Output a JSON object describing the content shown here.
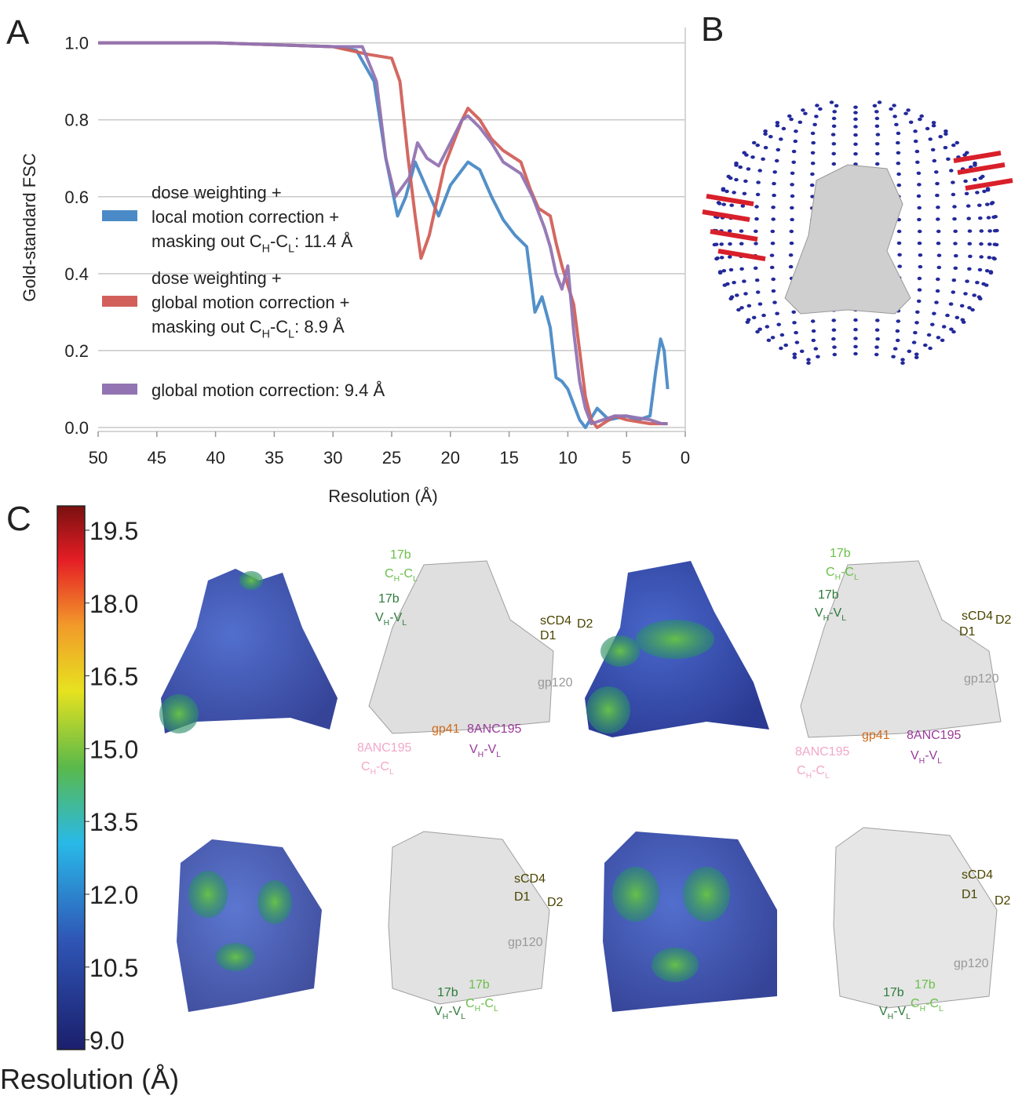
{
  "panels": {
    "a": "A",
    "b": "B",
    "c": "C"
  },
  "chart_data": {
    "type": "line",
    "ylabel": "Gold-standard FSC",
    "xlabel": "Resolution (Å)",
    "xlim": [
      50,
      0
    ],
    "xticks": [
      50,
      45,
      40,
      35,
      30,
      25,
      20,
      15,
      10,
      5,
      0
    ],
    "ylim": [
      0,
      1.04
    ],
    "yticks": [
      {
        "value": 0,
        "label": "0.0"
      },
      0.2,
      0.4,
      0.6,
      0.8,
      {
        "value": 1,
        "label": "1.0"
      }
    ],
    "grid": true,
    "series": [
      {
        "name": [
          [
            "dose weighting +"
          ],
          [
            "local motion correction +"
          ],
          [
            "masking out C",
            "H",
            "-C",
            "L",
            ": 11.4 Å"
          ]
        ],
        "color": "#4a8ac6",
        "x": [
          50,
          40,
          30,
          28,
          26.5,
          25.5,
          24.5,
          23.8,
          23,
          22,
          21,
          20,
          18.5,
          17.5,
          16.5,
          15.5,
          14.5,
          13.5,
          12.8,
          12.2,
          11.5,
          11,
          10.5,
          10,
          9.5,
          9,
          8.5,
          7.5,
          6.5,
          5,
          4,
          3,
          2.5,
          2.1,
          1.8,
          1.5
        ],
        "values": [
          1,
          1,
          0.99,
          0.98,
          0.9,
          0.7,
          0.55,
          0.6,
          0.69,
          0.62,
          0.55,
          0.63,
          0.69,
          0.67,
          0.6,
          0.54,
          0.5,
          0.47,
          0.3,
          0.34,
          0.26,
          0.13,
          0.12,
          0.1,
          0.06,
          0.02,
          0,
          0.05,
          0.02,
          0.03,
          0.02,
          0.03,
          0.15,
          0.23,
          0.2,
          0.1
        ]
      },
      {
        "name": [
          [
            "dose weighting +"
          ],
          [
            "global motion correction +"
          ],
          [
            "masking out C",
            "H",
            "-C",
            "L",
            ": 8.9 Å"
          ]
        ],
        "color": "#d2605a",
        "x": [
          50,
          40,
          30,
          27,
          25,
          24.3,
          23.6,
          23,
          22.5,
          21.8,
          20.5,
          19,
          18.5,
          17.5,
          16.5,
          15.5,
          14,
          13.2,
          12.5,
          11.5,
          11,
          10.5,
          9.5,
          9,
          8.5,
          8,
          7.5,
          6,
          5,
          3,
          1.5
        ],
        "values": [
          1,
          1,
          0.99,
          0.97,
          0.96,
          0.9,
          0.7,
          0.55,
          0.44,
          0.5,
          0.68,
          0.8,
          0.83,
          0.8,
          0.75,
          0.72,
          0.69,
          0.62,
          0.57,
          0.55,
          0.48,
          0.42,
          0.32,
          0.2,
          0.08,
          0.02,
          0,
          0.03,
          0.02,
          0.01,
          0.01
        ]
      },
      {
        "name": [
          [
            "global motion correction: 9.4 Å"
          ]
        ],
        "color": "#9274b2",
        "x": [
          50,
          40,
          30,
          27.5,
          26.3,
          25.5,
          24.7,
          23.5,
          22.8,
          22,
          21,
          20,
          19,
          18.5,
          17.5,
          16.5,
          15.5,
          14,
          13,
          12,
          11.5,
          11,
          10.5,
          10,
          9.5,
          9,
          8.5,
          8,
          6,
          5,
          3,
          2,
          1.5
        ],
        "values": [
          1,
          1,
          0.99,
          0.99,
          0.9,
          0.7,
          0.6,
          0.65,
          0.74,
          0.7,
          0.68,
          0.74,
          0.8,
          0.81,
          0.78,
          0.74,
          0.69,
          0.66,
          0.6,
          0.52,
          0.47,
          0.4,
          0.36,
          0.42,
          0.25,
          0.12,
          0.05,
          0.01,
          0.03,
          0.03,
          0.02,
          0.01,
          0.01
        ]
      }
    ]
  },
  "colorbar": {
    "label": "Resolution (Å)",
    "lim": [
      8.8,
      20.0
    ],
    "ticks": [
      {
        "value": 9,
        "label": "9.0"
      },
      10.5,
      {
        "value": 12,
        "label": "12.0"
      },
      13.5,
      {
        "value": 15,
        "label": "15.0"
      },
      16.5,
      {
        "value": 18,
        "label": "18.0"
      },
      19.5
    ]
  },
  "annotations": [
    {
      "text": [
        "17b"
      ],
      "color": "#6cbf4a"
    },
    {
      "text": [
        "C",
        "H",
        "-C",
        "L"
      ],
      "color": "#6cbf4a"
    },
    {
      "text": [
        "17b"
      ],
      "color": "#2e7a3a"
    },
    {
      "text": [
        "V",
        "H",
        "-V",
        "L"
      ],
      "color": "#2e7a3a"
    },
    {
      "text": [
        "sCD4"
      ],
      "color": "#4a4500"
    },
    {
      "text": [
        "D2"
      ],
      "color": "#4a4500"
    },
    {
      "text": [
        "D1"
      ],
      "color": "#4a4500"
    },
    {
      "text": [
        "gp120"
      ],
      "color": "#999999"
    },
    {
      "text": [
        "gp41"
      ],
      "color": "#d06a1a"
    },
    {
      "text": [
        "8ANC195"
      ],
      "color": "#9a3a9a"
    },
    {
      "text": [
        "V",
        "H",
        "-V",
        "L"
      ],
      "color": "#9a3a9a"
    },
    {
      "text": [
        "8ANC195"
      ],
      "color": "#f2a8c8"
    },
    {
      "text": [
        "C",
        "H",
        "-C",
        "L"
      ],
      "color": "#f2a8c8"
    },
    {
      "text": [
        "17b"
      ],
      "color": "#6cbf4a"
    },
    {
      "text": [
        "C",
        "H",
        "-C",
        "L"
      ],
      "color": "#6cbf4a"
    },
    {
      "text": [
        "17b"
      ],
      "color": "#2e7a3a"
    },
    {
      "text": [
        "V",
        "H",
        "-V",
        "L"
      ],
      "color": "#2e7a3a"
    },
    {
      "text": [
        "sCD4"
      ],
      "color": "#4a4500"
    },
    {
      "text": [
        "D2"
      ],
      "color": "#4a4500"
    },
    {
      "text": [
        "D1"
      ],
      "color": "#4a4500"
    },
    {
      "text": [
        "gp120"
      ],
      "color": "#999999"
    },
    {
      "text": [
        "gp41"
      ],
      "color": "#d06a1a"
    },
    {
      "text": [
        "8ANC195"
      ],
      "color": "#9a3a9a"
    },
    {
      "text": [
        "V",
        "H",
        "-V",
        "L"
      ],
      "color": "#9a3a9a"
    },
    {
      "text": [
        "8ANC195"
      ],
      "color": "#f2a8c8"
    },
    {
      "text": [
        "C",
        "H",
        "-C",
        "L"
      ],
      "color": "#f2a8c8"
    },
    {
      "text": [
        "sCD4"
      ],
      "color": "#4a4500"
    },
    {
      "text": [
        "D1"
      ],
      "color": "#4a4500"
    },
    {
      "text": [
        "D2"
      ],
      "color": "#4a4500"
    },
    {
      "text": [
        "gp120"
      ],
      "color": "#999999"
    },
    {
      "text": [
        "17b"
      ],
      "color": "#2e7a3a"
    },
    {
      "text": [
        "V",
        "H",
        "-V",
        "L"
      ],
      "color": "#2e7a3a"
    },
    {
      "text": [
        "17b"
      ],
      "color": "#6cbf4a"
    },
    {
      "text": [
        "C",
        "H",
        "-C",
        "L"
      ],
      "color": "#6cbf4a"
    },
    {
      "text": [
        "sCD4"
      ],
      "color": "#4a4500"
    },
    {
      "text": [
        "D1"
      ],
      "color": "#4a4500"
    },
    {
      "text": [
        "D2"
      ],
      "color": "#4a4500"
    },
    {
      "text": [
        "gp120"
      ],
      "color": "#999999"
    },
    {
      "text": [
        "17b"
      ],
      "color": "#2e7a3a"
    },
    {
      "text": [
        "V",
        "H",
        "-V",
        "L"
      ],
      "color": "#2e7a3a"
    },
    {
      "text": [
        "17b"
      ],
      "color": "#6cbf4a"
    },
    {
      "text": [
        "C",
        "H",
        "-C",
        "L"
      ],
      "color": "#6cbf4a"
    }
  ]
}
